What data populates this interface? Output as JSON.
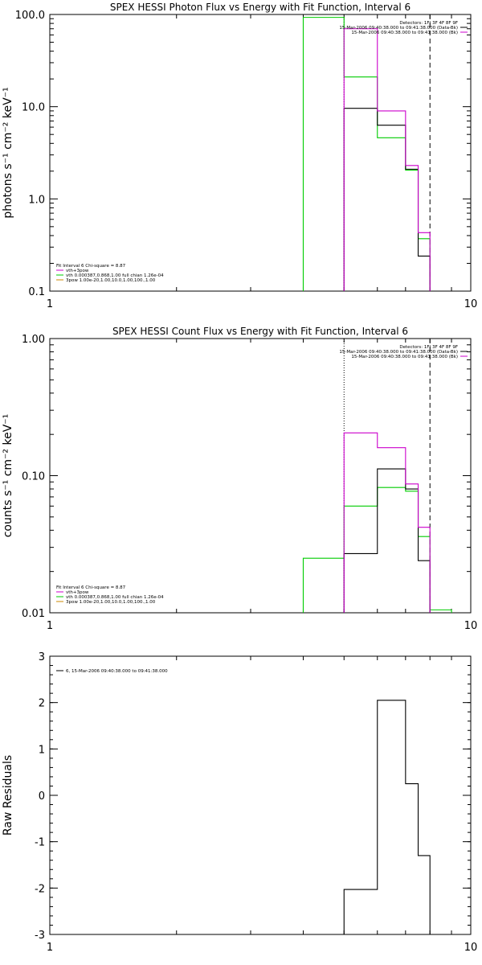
{
  "chart_data": [
    {
      "type": "step",
      "title": "SPEX HESSI Photon Flux vs Energy with Fit Function, Interval 6",
      "ylabel": "photons s⁻¹ cm⁻² keV⁻¹",
      "xscale": "log",
      "yscale": "log",
      "xlim": [
        1,
        10
      ],
      "ylim": [
        0.1,
        100
      ],
      "xticks": [
        "1",
        "10"
      ],
      "yticks": [
        "0.1",
        "1.0",
        "10.0",
        "100.0"
      ],
      "vlines": [
        {
          "x": 5,
          "style": "dotted"
        },
        {
          "x": 8,
          "style": "dashed"
        }
      ],
      "legend_right": [
        "Detectors: 1F| 3F 4F 8F 9F",
        "15-Mar-2006 09:40:38.000 to 09:41:38.000 (Data-Bk)",
        "15-Mar-2006 09:40:38.000 to 09:41:38.000 (Bk)"
      ],
      "legend_left": [
        "Fit Interval 6   Chi-square = 8.87",
        "vth+3pow",
        "vth 0.000387,0.868,1.00  full chian 1.26e-04",
        "3pow 1.00e-20,1.00,10.0,1.00,100.,1.00"
      ],
      "series": [
        {
          "color": "#00cc00",
          "edges": [
            4,
            5,
            6,
            7,
            7.5,
            8
          ],
          "values": [
            93,
            21,
            4.6,
            2.05,
            0.37
          ]
        },
        {
          "color": "#000000",
          "edges": [
            5,
            6,
            7,
            7.5,
            8
          ],
          "values": [
            9.6,
            6.3,
            2.1,
            0.24
          ]
        },
        {
          "color": "#cc00cc",
          "edges": [
            5,
            6,
            7,
            7.5,
            8
          ],
          "values": [
            70,
            9,
            2.3,
            0.43
          ]
        }
      ]
    },
    {
      "type": "step",
      "title": "SPEX HESSI Count Flux vs Energy with Fit Function, Interval 6",
      "ylabel": "counts s⁻¹ cm⁻² keV⁻¹",
      "xscale": "log",
      "yscale": "log",
      "xlim": [
        1,
        10
      ],
      "ylim": [
        0.01,
        1
      ],
      "xticks": [
        "1",
        "10"
      ],
      "yticks": [
        "0.01",
        "0.10",
        "1.00"
      ],
      "vlines": [
        {
          "x": 5,
          "style": "dotted"
        },
        {
          "x": 8,
          "style": "dashed"
        }
      ],
      "legend_right": [
        "Detectors: 1F| 3F 4F 8F 9F",
        "15-Mar-2006 09:40:38.000 to 09:41:38.000 (Data-Bk)",
        "15-Mar-2006 09:40:38.000 to 09:41:38.000 (Bk)"
      ],
      "legend_left": [
        "Fit Interval 6   Chi-square = 8.87",
        "vth+3pow",
        "vth 0.000387,0.868,1.00  full chian 1.26e-04",
        "3pow 1.00e-20,1.00,10.0,1.00,100.,1.00"
      ],
      "series": [
        {
          "color": "#00cc00",
          "edges": [
            4,
            5,
            6,
            7,
            7.5,
            8,
            9
          ],
          "values": [
            0.025,
            0.06,
            0.082,
            0.077,
            0.036,
            0.0105
          ]
        },
        {
          "color": "#000000",
          "edges": [
            5,
            6,
            7,
            7.5,
            8
          ],
          "values": [
            0.027,
            0.112,
            0.08,
            0.024
          ]
        },
        {
          "color": "#cc00cc",
          "edges": [
            5,
            6,
            7,
            7.5,
            8
          ],
          "values": [
            0.205,
            0.16,
            0.087,
            0.042
          ]
        }
      ]
    },
    {
      "type": "step",
      "title": "",
      "ylabel": "Raw Residuals",
      "xscale": "log",
      "yscale": "linear",
      "xlim": [
        1,
        10
      ],
      "ylim": [
        -3,
        3
      ],
      "xticks": [
        "1",
        "10"
      ],
      "yticks": [
        "-3",
        "-2",
        "-1",
        "0",
        "1",
        "2",
        "3"
      ],
      "legend_left": [
        "6, 15-Mar-2006 09:40:38.000 to 09:41:38.000"
      ],
      "series": [
        {
          "color": "#000000",
          "edges": [
            5,
            6,
            7,
            7.5,
            8
          ],
          "values": [
            -2.03,
            2.05,
            0.25,
            -1.3
          ]
        }
      ]
    }
  ]
}
